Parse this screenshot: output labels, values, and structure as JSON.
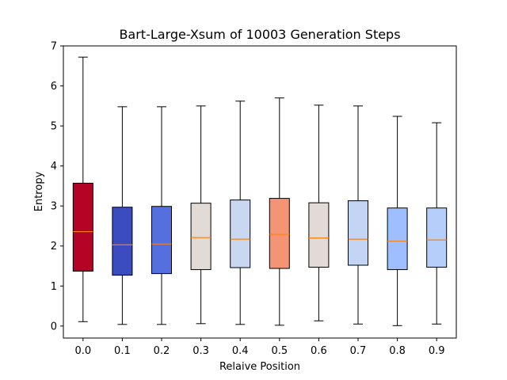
{
  "chart_data": {
    "type": "box",
    "title": "Bart-Large-Xsum of 10003 Generation Steps",
    "xlabel": "Relaive Position",
    "ylabel": "Entropy",
    "ylim": [
      -0.3,
      7.0
    ],
    "yticks": [
      0,
      1,
      2,
      3,
      4,
      5,
      6,
      7
    ],
    "grid": false,
    "median_color": "#ff7f0e",
    "boxes": [
      {
        "label": "0.0",
        "whisker_low": 0.11,
        "q1": 1.37,
        "median": 2.36,
        "q3": 3.57,
        "whisker_high": 6.72,
        "color": "#b40426"
      },
      {
        "label": "0.1",
        "whisker_low": 0.04,
        "q1": 1.27,
        "median": 2.03,
        "q3": 2.97,
        "whisker_high": 5.48,
        "color": "#3b4cc0"
      },
      {
        "label": "0.2",
        "whisker_low": 0.04,
        "q1": 1.31,
        "median": 2.05,
        "q3": 2.99,
        "whisker_high": 5.48,
        "color": "#5470de"
      },
      {
        "label": "0.3",
        "whisker_low": 0.06,
        "q1": 1.41,
        "median": 2.21,
        "q3": 3.07,
        "whisker_high": 5.5,
        "color": "#e2dad5"
      },
      {
        "label": "0.4",
        "whisker_low": 0.04,
        "q1": 1.46,
        "median": 2.17,
        "q3": 3.15,
        "whisker_high": 5.62,
        "color": "#c9d7f0"
      },
      {
        "label": "0.5",
        "whisker_low": 0.02,
        "q1": 1.44,
        "median": 2.29,
        "q3": 3.19,
        "whisker_high": 5.7,
        "color": "#f39475"
      },
      {
        "label": "0.6",
        "whisker_low": 0.13,
        "q1": 1.47,
        "median": 2.2,
        "q3": 3.08,
        "whisker_high": 5.52,
        "color": "#e2dad5"
      },
      {
        "label": "0.7",
        "whisker_low": 0.05,
        "q1": 1.52,
        "median": 2.17,
        "q3": 3.13,
        "whisker_high": 5.5,
        "color": "#c3d5f4"
      },
      {
        "label": "0.8",
        "whisker_low": 0.01,
        "q1": 1.41,
        "median": 2.12,
        "q3": 2.95,
        "whisker_high": 5.24,
        "color": "#9ebeff"
      },
      {
        "label": "0.9",
        "whisker_low": 0.05,
        "q1": 1.47,
        "median": 2.15,
        "q3": 2.95,
        "whisker_high": 5.08,
        "color": "#b6cefa"
      }
    ]
  }
}
